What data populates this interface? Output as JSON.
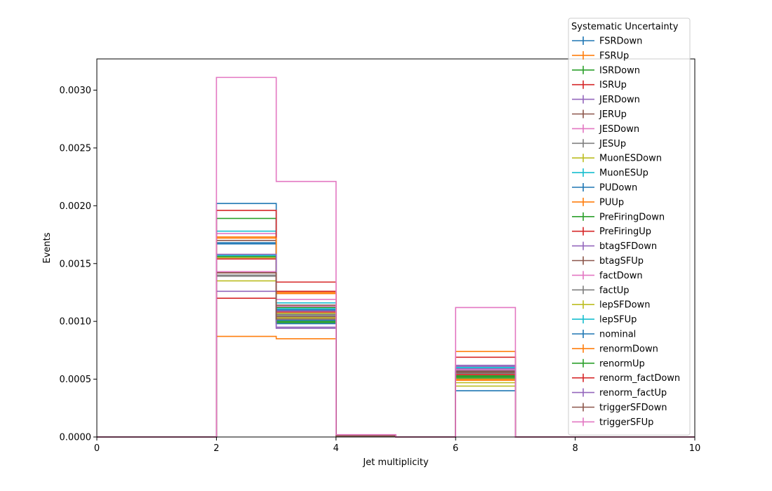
{
  "chart_data": {
    "type": "line",
    "subtype": "step-histogram",
    "title": "",
    "xlabel": "Jet multiplicity",
    "ylabel": "Events",
    "xlim": [
      0,
      10
    ],
    "ylim": [
      0,
      0.00327
    ],
    "xticks": [
      0,
      2,
      4,
      6,
      8,
      10
    ],
    "xtick_labels": [
      "0",
      "2",
      "4",
      "6",
      "8",
      "10"
    ],
    "yticks": [
      0,
      0.0005,
      0.001,
      0.0015,
      0.002,
      0.0025,
      0.003
    ],
    "ytick_labels": [
      "0.0000",
      "0.0005",
      "0.0010",
      "0.0015",
      "0.0020",
      "0.0025",
      "0.0030"
    ],
    "grid": false,
    "legend_title": "Systematic Uncertainty",
    "legend_position": "top-right",
    "bin_edges": [
      0,
      1,
      2,
      3,
      4,
      5,
      6,
      7,
      8,
      9,
      10
    ],
    "series": [
      {
        "name": "FSRDown",
        "color": "#1f77b4",
        "values": [
          0,
          0,
          0.00168,
          0.00098,
          1e-05,
          0,
          0.0004,
          0,
          0,
          0
        ]
      },
      {
        "name": "FSRUp",
        "color": "#ff7f0e",
        "values": [
          0,
          0,
          0.00087,
          0.00085,
          1e-05,
          0,
          0.00074,
          0,
          0,
          0
        ]
      },
      {
        "name": "ISRDown",
        "color": "#2ca02c",
        "values": [
          0,
          0,
          0.00189,
          0.001,
          1e-05,
          0,
          0.00052,
          0,
          0,
          0
        ]
      },
      {
        "name": "ISRUp",
        "color": "#d62728",
        "values": [
          0,
          0,
          0.0012,
          0.00134,
          1e-05,
          0,
          0.00069,
          0,
          0,
          0
        ]
      },
      {
        "name": "JERDown",
        "color": "#9467bd",
        "values": [
          0,
          0,
          0.00126,
          0.00095,
          1e-05,
          0,
          0.00061,
          0,
          0,
          0
        ]
      },
      {
        "name": "JERUp",
        "color": "#8c564b",
        "values": [
          0,
          0,
          0.00142,
          0.00104,
          1e-05,
          0,
          0.00056,
          0,
          0,
          0
        ]
      },
      {
        "name": "JESDown",
        "color": "#e377c2",
        "values": [
          0,
          0,
          0.00176,
          0.00119,
          1e-05,
          0,
          0.00058,
          0,
          0,
          0
        ]
      },
      {
        "name": "JESUp",
        "color": "#7f7f7f",
        "values": [
          0,
          0,
          0.00139,
          0.00106,
          1e-05,
          0,
          0.00055,
          0,
          0,
          0
        ]
      },
      {
        "name": "MuonESDown",
        "color": "#bcbd22",
        "values": [
          0,
          0,
          0.00135,
          0.00103,
          1e-05,
          0,
          0.00047,
          0,
          0,
          0
        ]
      },
      {
        "name": "MuonESUp",
        "color": "#17becf",
        "values": [
          0,
          0,
          0.00178,
          0.00116,
          1e-05,
          0,
          0.0006,
          0,
          0,
          0
        ]
      },
      {
        "name": "PUDown",
        "color": "#1f77b4",
        "values": [
          0,
          0,
          0.00202,
          0.0011,
          1e-05,
          0,
          0.00057,
          0,
          0,
          0
        ]
      },
      {
        "name": "PUUp",
        "color": "#ff7f0e",
        "values": [
          0,
          0,
          0.00173,
          0.00124,
          1e-05,
          0,
          0.00049,
          0,
          0,
          0
        ]
      },
      {
        "name": "PreFiringDown",
        "color": "#2ca02c",
        "values": [
          0,
          0,
          0.00157,
          0.00112,
          1e-05,
          0,
          0.00053,
          0,
          0,
          0
        ]
      },
      {
        "name": "PreFiringUp",
        "color": "#d62728",
        "values": [
          0,
          0,
          0.00196,
          0.00108,
          1e-05,
          0,
          0.00054,
          0,
          0,
          0
        ]
      },
      {
        "name": "btagSFDown",
        "color": "#9467bd",
        "values": [
          0,
          0,
          0.00156,
          0.00109,
          1e-05,
          0,
          0.00059,
          0,
          0,
          0
        ]
      },
      {
        "name": "btagSFUp",
        "color": "#8c564b",
        "values": [
          0,
          0,
          0.0017,
          0.00114,
          1e-05,
          0,
          0.00056,
          0,
          0,
          0
        ]
      },
      {
        "name": "factDown",
        "color": "#e377c2",
        "values": [
          0,
          0,
          0.00143,
          0.00113,
          1e-05,
          0,
          0.00058,
          0,
          0,
          0
        ]
      },
      {
        "name": "factUp",
        "color": "#7f7f7f",
        "values": [
          0,
          0,
          0.0014,
          0.00105,
          1e-05,
          0,
          0.00055,
          0,
          0,
          0
        ]
      },
      {
        "name": "lepSFDown",
        "color": "#bcbd22",
        "values": [
          0,
          0,
          0.00155,
          0.00107,
          1e-05,
          0,
          0.00044,
          0,
          0,
          0
        ]
      },
      {
        "name": "lepSFUp",
        "color": "#17becf",
        "values": [
          0,
          0,
          0.00157,
          0.00111,
          1e-05,
          0,
          0.0006,
          0,
          0,
          0
        ]
      },
      {
        "name": "nominal",
        "color": "#1f77b4",
        "values": [
          0,
          0,
          0.00167,
          0.00101,
          1e-05,
          0,
          0.00057,
          0,
          0,
          0
        ]
      },
      {
        "name": "renormDown",
        "color": "#ff7f0e",
        "values": [
          0,
          0,
          0.00172,
          0.00125,
          1e-05,
          0,
          0.0005,
          0,
          0,
          0
        ]
      },
      {
        "name": "renormUp",
        "color": "#2ca02c",
        "values": [
          0,
          0,
          0.00156,
          0.00099,
          1e-05,
          0,
          0.00051,
          0,
          0,
          0
        ]
      },
      {
        "name": "renorm_factDown",
        "color": "#d62728",
        "values": [
          0,
          0,
          0.00154,
          0.00126,
          1e-05,
          0,
          0.00054,
          0,
          0,
          0
        ]
      },
      {
        "name": "renorm_factUp",
        "color": "#9467bd",
        "values": [
          0,
          0,
          0.00158,
          0.00094,
          1e-05,
          0,
          0.00062,
          0,
          0,
          0
        ]
      },
      {
        "name": "triggerSFDown",
        "color": "#8c564b",
        "values": [
          0,
          0,
          0.00142,
          0.00102,
          1e-05,
          0,
          0.00057,
          0,
          0,
          0
        ]
      },
      {
        "name": "triggerSFUp",
        "color": "#e377c2",
        "values": [
          0,
          0,
          0.00311,
          0.00221,
          2e-05,
          0,
          0.00112,
          0,
          0,
          0
        ]
      }
    ]
  }
}
